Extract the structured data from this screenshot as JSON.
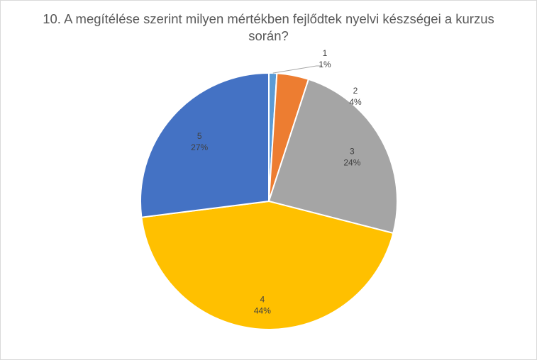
{
  "chart_data": {
    "type": "pie",
    "title_lines": [
      "10. A megítélése szerint milyen mértékben fejlődtek nyelvi készségei a kurzus",
      "során?"
    ],
    "categories": [
      "1",
      "2",
      "3",
      "4",
      "5"
    ],
    "values": [
      1,
      4,
      24,
      44,
      27
    ],
    "value_labels": [
      "1%",
      "4%",
      "24%",
      "44%",
      "27%"
    ],
    "colors": [
      "#5B9BD5",
      "#ED7D31",
      "#A5A5A5",
      "#FFC000",
      "#4472C4"
    ],
    "legend": "none"
  }
}
